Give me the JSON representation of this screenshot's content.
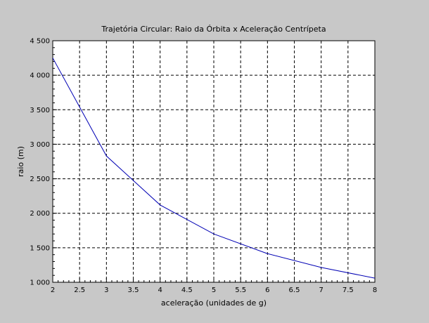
{
  "chart_data": {
    "type": "line",
    "title": "Trajetória Circular: Raio da Órbita x Aceleração Centrípeta",
    "xlabel": "aceleração (unidades de g)",
    "ylabel": "raio (m)",
    "xlim": [
      2,
      8
    ],
    "ylim": [
      1000,
      4500
    ],
    "grid": true,
    "x_ticks": [
      2,
      2.5,
      3,
      3.5,
      4,
      4.5,
      5,
      5.5,
      6,
      6.5,
      7,
      7.5,
      8
    ],
    "x_tick_labels": [
      "2",
      "2.5",
      "3",
      "3.5",
      "4",
      "4.5",
      "5",
      "5.5",
      "6",
      "6.5",
      "7",
      "7.5",
      "8"
    ],
    "y_ticks": [
      1000,
      1500,
      2000,
      2500,
      3000,
      3500,
      4000,
      4500
    ],
    "y_tick_labels": [
      "1 000",
      "1 500",
      "2 000",
      "2 500",
      "3 000",
      "3 500",
      "4 000",
      "4 500"
    ],
    "series": [
      {
        "color": "#0000b4",
        "x": [
          2,
          3,
          4,
          5,
          6,
          7,
          8
        ],
        "y": [
          4250,
          2830,
          2120,
          1700,
          1415,
          1215,
          1060
        ]
      }
    ]
  }
}
